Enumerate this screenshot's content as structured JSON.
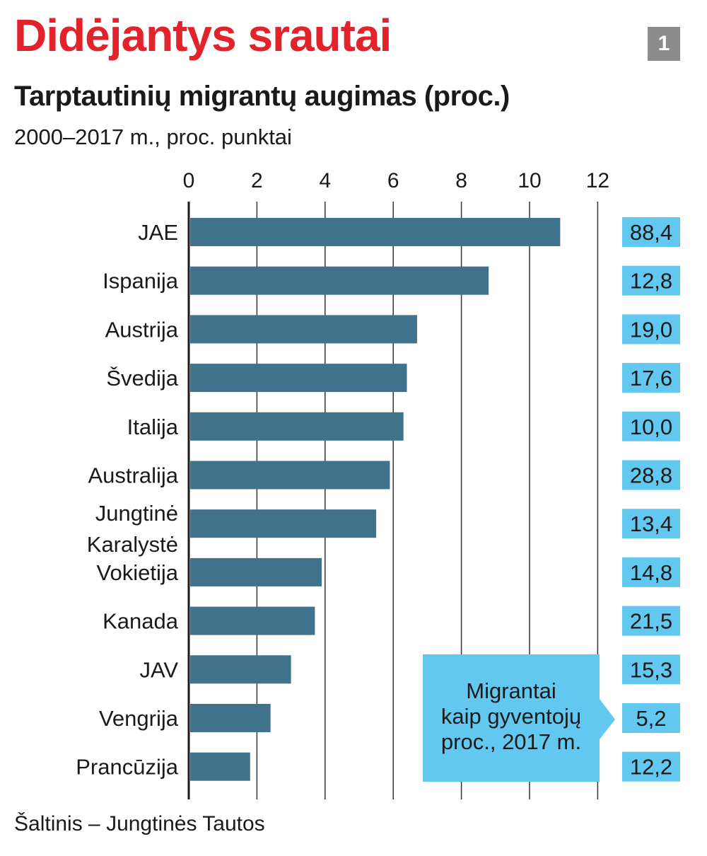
{
  "header": {
    "title": "Didėjantys srautai",
    "badge": "1",
    "subtitle": "Tarptautinių migrantų augimas (proc.)",
    "unit_note": "2000–2017 m., proc. punktai"
  },
  "source": "Šaltinis – Jungtinės Tautos",
  "colors": {
    "title": "#e3232c",
    "bar": "#41728b",
    "label_box": "#62c8ef",
    "badge": "#8c8c8c"
  },
  "callout": {
    "lines": [
      "Migrantai",
      "kaip gyventojų",
      "proc., 2017 m."
    ]
  },
  "chart_data": {
    "type": "bar",
    "orientation": "horizontal",
    "title": "Tarptautinių migrantų augimas (proc.)",
    "xlabel": "2000–2017 m., proc. punktai",
    "xlim": [
      0,
      12
    ],
    "x_ticks": [
      0,
      2,
      4,
      6,
      8,
      10,
      12
    ],
    "grid": true,
    "categories": [
      [
        "JAE"
      ],
      [
        "Ispanija"
      ],
      [
        "Austrija"
      ],
      [
        "Švedija"
      ],
      [
        "Italija"
      ],
      [
        "Australija"
      ],
      [
        "Jungtinė",
        "Karalystė"
      ],
      [
        "Vokietija"
      ],
      [
        "Kanada"
      ],
      [
        "JAV"
      ],
      [
        "Vengrija"
      ],
      [
        "Prancūzija"
      ]
    ],
    "values": [
      10.9,
      8.8,
      6.7,
      6.4,
      6.3,
      5.9,
      5.5,
      3.9,
      3.7,
      3.0,
      2.4,
      1.8
    ],
    "secondary_series": {
      "name": "Migrantai kaip gyventojų proc., 2017 m.",
      "labels": [
        "88,4",
        "12,8",
        "19,0",
        "17,6",
        "10,0",
        "28,8",
        "13,4",
        "14,8",
        "21,5",
        "15,3",
        "5,2",
        "12,2"
      ]
    }
  }
}
